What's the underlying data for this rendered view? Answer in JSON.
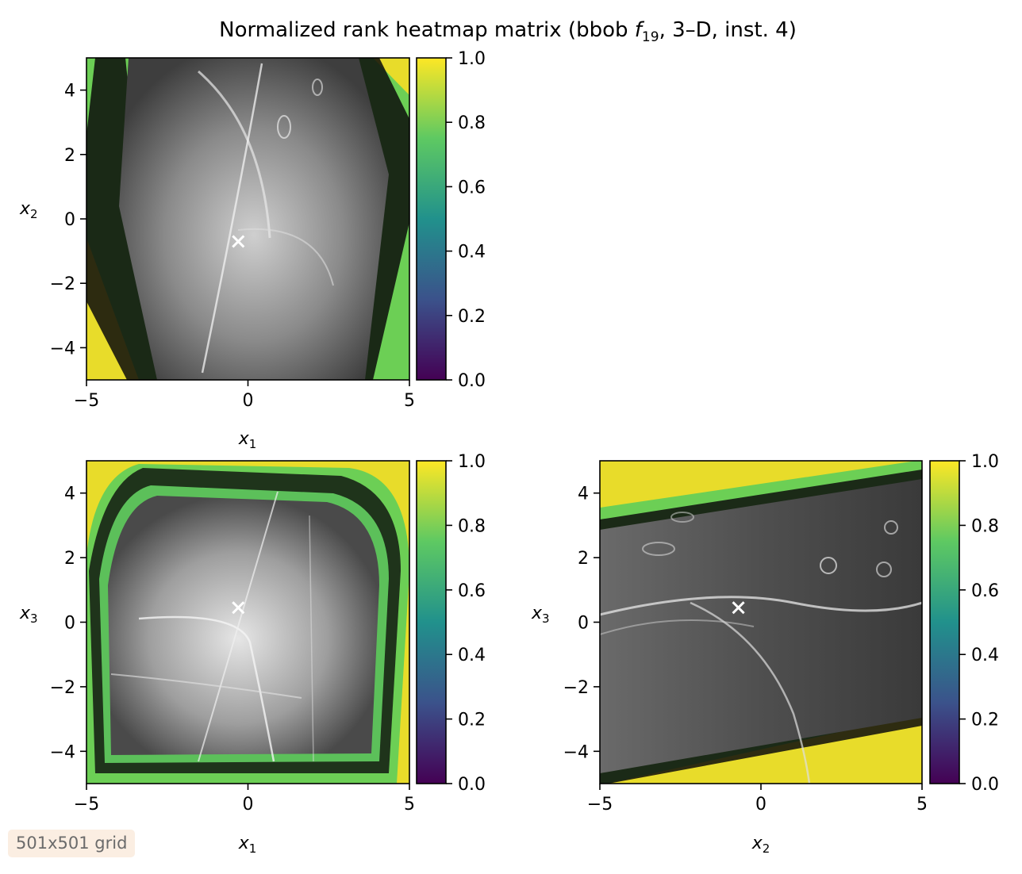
{
  "title": "Normalized rank heatmap matrix (bbob f19, 3–D, inst. 4)",
  "title_parts": {
    "pre": "Normalized rank heatmap matrix (bbob ",
    "f": "f",
    "sub": "19",
    "post": ", 3–D, inst. 4)"
  },
  "grid_label": "501x501 grid",
  "colors": {
    "viridis": [
      "#440154",
      "#3b528b",
      "#21918c",
      "#5ec962",
      "#fde725"
    ],
    "marker": "#ffffff",
    "badge_bg": "#fbeee2"
  },
  "chart_data": [
    {
      "type": "heatmap",
      "name": "x1-x2",
      "x": {
        "label": "x",
        "sub": "1",
        "range": [
          -5,
          5
        ],
        "ticks": [
          -5,
          0,
          5
        ],
        "tick_labels": [
          "−5",
          "0",
          "5"
        ]
      },
      "y": {
        "label": "x",
        "sub": "2",
        "range": [
          -5,
          5
        ],
        "ticks": [
          -4,
          -2,
          0,
          2,
          4
        ],
        "tick_labels": [
          "−4",
          "−2",
          "0",
          "2",
          "4"
        ]
      },
      "marker": {
        "x": -0.3,
        "y": -0.7,
        "symbol": "x"
      },
      "colorbar": {
        "range": [
          0,
          1
        ],
        "ticks": [
          0,
          0.2,
          0.4,
          0.6,
          0.8,
          1.0
        ],
        "tick_labels": [
          "0.0",
          "0.2",
          "0.4",
          "0.6",
          "0.8",
          "1.0"
        ],
        "colormap": "viridis"
      }
    },
    {
      "type": "heatmap",
      "name": "x1-x3",
      "x": {
        "label": "x",
        "sub": "1",
        "range": [
          -5,
          5
        ],
        "ticks": [
          -5,
          0,
          5
        ],
        "tick_labels": [
          "−5",
          "0",
          "5"
        ]
      },
      "y": {
        "label": "x",
        "sub": "3",
        "range": [
          -5,
          5
        ],
        "ticks": [
          -4,
          -2,
          0,
          2,
          4
        ],
        "tick_labels": [
          "−4",
          "−2",
          "0",
          "2",
          "4"
        ]
      },
      "marker": {
        "x": -0.3,
        "y": 0.45,
        "symbol": "x"
      },
      "colorbar": {
        "range": [
          0,
          1
        ],
        "ticks": [
          0,
          0.2,
          0.4,
          0.6,
          0.8,
          1.0
        ],
        "tick_labels": [
          "0.0",
          "0.2",
          "0.4",
          "0.6",
          "0.8",
          "1.0"
        ],
        "colormap": "viridis"
      }
    },
    {
      "type": "heatmap",
      "name": "x2-x3",
      "x": {
        "label": "x",
        "sub": "2",
        "range": [
          -5,
          5
        ],
        "ticks": [
          -5,
          0,
          5
        ],
        "tick_labels": [
          "−5",
          "0",
          "5"
        ]
      },
      "y": {
        "label": "x",
        "sub": "3",
        "range": [
          -5,
          5
        ],
        "ticks": [
          -4,
          -2,
          0,
          2,
          4
        ],
        "tick_labels": [
          "−4",
          "−2",
          "0",
          "2",
          "4"
        ]
      },
      "marker": {
        "x": -0.7,
        "y": 0.45,
        "symbol": "x"
      },
      "colorbar": {
        "range": [
          0,
          1
        ],
        "ticks": [
          0,
          0.2,
          0.4,
          0.6,
          0.8,
          1.0
        ],
        "tick_labels": [
          "0.0",
          "0.2",
          "0.4",
          "0.6",
          "0.8",
          "1.0"
        ],
        "colormap": "viridis"
      }
    }
  ]
}
